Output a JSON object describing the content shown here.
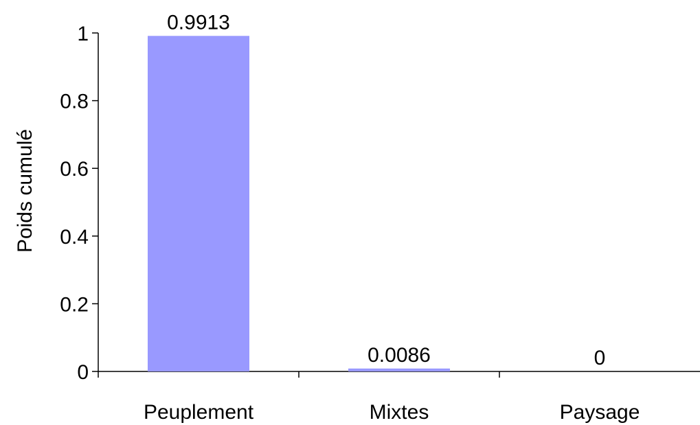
{
  "chart_data": {
    "type": "bar",
    "categories": [
      "Peuplement",
      "Mixtes",
      "Paysage"
    ],
    "values": [
      0.9913,
      0.0086,
      0
    ],
    "data_labels": [
      "0.9913",
      "0.0086",
      "0"
    ],
    "xlabel": "",
    "ylabel": "Poids cumulé",
    "ylim": [
      0,
      1
    ],
    "yticks": [
      0,
      0.2,
      0.4,
      0.6,
      0.8,
      1
    ],
    "ytick_labels": [
      "0",
      "0.2",
      "0.4",
      "0.6",
      "0.8",
      "1"
    ],
    "grid": false,
    "legend": "none",
    "bar_color": "#9999ff"
  }
}
